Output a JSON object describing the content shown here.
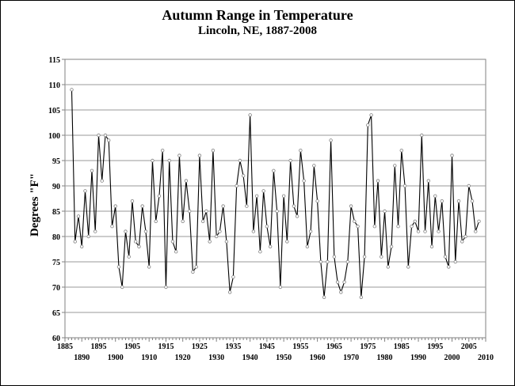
{
  "chart_data": {
    "type": "line",
    "title": "Autumn Range in Temperature",
    "subtitle": "Lincoln, NE, 1887-2008",
    "xlabel": "",
    "ylabel": "Degrees \"F\"",
    "xlim": [
      1885,
      2010
    ],
    "ylim": [
      60,
      115
    ],
    "y_ticks": [
      60,
      65,
      70,
      75,
      80,
      85,
      90,
      95,
      100,
      105,
      110,
      115
    ],
    "x_ticks_upper": [
      1885,
      1895,
      1905,
      1915,
      1925,
      1935,
      1945,
      1955,
      1965,
      1975,
      1985,
      1995,
      2005
    ],
    "x_ticks_lower": [
      1890,
      1900,
      1910,
      1920,
      1930,
      1940,
      1950,
      1960,
      1970,
      1980,
      1990,
      2000,
      2010
    ],
    "grid": true,
    "legend": "none",
    "line_color": "#000000",
    "marker_color": "#808080",
    "start_year": 1887,
    "values": [
      109,
      79,
      84,
      78,
      89,
      80,
      93,
      81,
      100,
      91,
      100,
      99,
      82,
      86,
      74,
      70,
      81,
      76,
      87,
      79,
      78,
      86,
      81,
      74,
      95,
      83,
      88,
      97,
      70,
      95,
      79,
      77,
      96,
      83,
      91,
      85,
      73,
      74,
      96,
      83,
      85,
      79,
      97,
      80,
      81,
      86,
      79,
      69,
      72,
      90,
      95,
      92,
      86,
      104,
      81,
      88,
      77,
      89,
      82,
      78,
      93,
      85,
      70,
      88,
      79,
      95,
      86,
      84,
      97,
      91,
      78,
      81,
      94,
      87,
      75,
      68,
      75,
      99,
      76,
      71,
      69,
      71,
      75,
      86,
      83,
      82,
      68,
      76,
      102,
      104,
      82,
      91,
      76,
      85,
      74,
      78,
      94,
      82,
      97,
      90,
      74,
      82,
      83,
      81,
      100,
      81,
      91,
      78,
      88,
      81,
      87,
      76,
      74,
      96,
      75,
      87,
      79,
      80,
      90,
      87,
      81,
      83
    ]
  }
}
